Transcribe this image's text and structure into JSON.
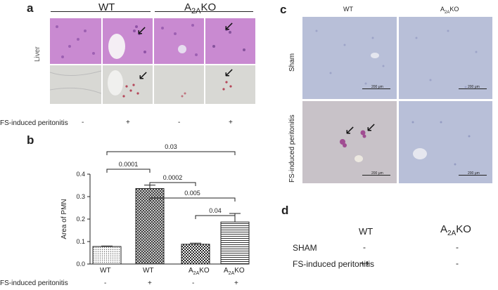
{
  "panel_a": {
    "label": "a",
    "group_wt": "WT",
    "group_a2ako_base": "A",
    "group_a2ako_sub": "2A",
    "group_a2ako_tail": "KO",
    "row_label": "Liver",
    "condition_label": "FS-induced peritonitis",
    "signs": [
      "-",
      "+",
      "-",
      "+"
    ]
  },
  "panel_b": {
    "label": "b",
    "sig_labels": [
      "0.03",
      "0.0001",
      "0.0002",
      "0.005",
      "0.04"
    ],
    "condition_label": "FS-induced peritonitis",
    "signs": [
      "-",
      "+",
      "-",
      "+"
    ]
  },
  "panel_c": {
    "label": "c",
    "col_wt": "WT",
    "col_a2ako_base": "A",
    "col_a2ako_sub": "2A",
    "col_a2ako_tail": "KO",
    "row_sham": "Sham",
    "row_fs": "FS-induced peritonitis",
    "scale_text": "200 μm"
  },
  "panel_d": {
    "label": "d",
    "col_wt": "WT",
    "col_a2ako_base": "A",
    "col_a2ako_sub": "2A",
    "col_a2ako_tail": "KO",
    "rows": [
      {
        "label": "SHAM",
        "wt": "-",
        "ko": "-"
      },
      {
        "label": "FS-induced peritonitis",
        "wt": "++",
        "ko": "-"
      }
    ]
  },
  "chart_data": {
    "type": "bar",
    "categories": [
      "WT",
      "WT",
      "A2AKO",
      "A2AKO"
    ],
    "category_labels": [
      {
        "base": "WT",
        "sub": "",
        "tail": ""
      },
      {
        "base": "WT",
        "sub": "",
        "tail": ""
      },
      {
        "base": "A",
        "sub": "2A",
        "tail": "KO"
      },
      {
        "base": "A",
        "sub": "2A",
        "tail": "KO"
      }
    ],
    "values": [
      0.078,
      0.336,
      0.088,
      0.187
    ],
    "errors": [
      0.002,
      0.015,
      0.005,
      0.038
    ],
    "ylabel": "Area of PMN",
    "ylim": [
      0,
      0.4
    ],
    "yticks": [
      "0.0",
      "0.1",
      "0.2",
      "0.3",
      "0.4"
    ],
    "patterns": [
      "dots",
      "crosshatch",
      "checker",
      "horizontal-lines"
    ],
    "significance": [
      {
        "from": 0,
        "to": 3,
        "label": "0.03"
      },
      {
        "from": 0,
        "to": 1,
        "label": "0.0001"
      },
      {
        "from": 1,
        "to": 2,
        "label": "0.0002"
      },
      {
        "from": 1,
        "to": 3,
        "label": "0.005"
      },
      {
        "from": 2,
        "to": 3,
        "label": "0.04"
      }
    ]
  }
}
